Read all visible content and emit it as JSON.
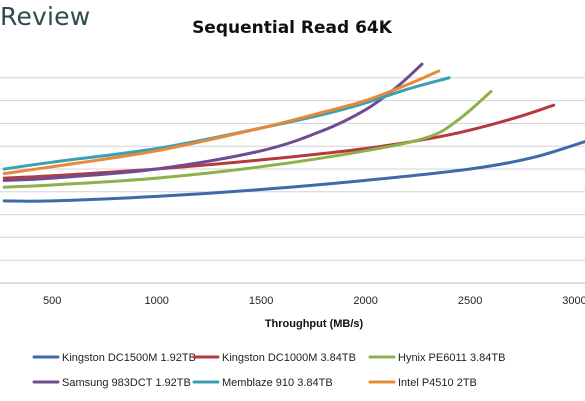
{
  "header": {
    "logo_text": "Review"
  },
  "chart_data": {
    "type": "line",
    "title": "Sequential Read 64K",
    "xlabel": "Throughput (MB/s)",
    "ylabel": "",
    "xlim": [
      250,
      3050
    ],
    "ylim": [
      0,
      10
    ],
    "x_ticks": [
      500,
      1000,
      1500,
      2000,
      2500,
      3000
    ],
    "x_tick_labels": [
      "500",
      "1000",
      "1500",
      "2000",
      "2500",
      "3000"
    ],
    "y_gridlines": [
      1,
      2,
      3,
      4,
      5,
      6,
      7,
      8,
      9
    ],
    "grid": true,
    "legend_position": "bottom",
    "series": [
      {
        "name": "Kingston DC1500M 1.92TB",
        "color": "#3f6aa7",
        "points": [
          [
            270,
            3.6
          ],
          [
            500,
            3.6
          ],
          [
            1000,
            3.8
          ],
          [
            1500,
            4.1
          ],
          [
            2000,
            4.5
          ],
          [
            2500,
            5.0
          ],
          [
            2800,
            5.5
          ],
          [
            3050,
            6.2
          ]
        ]
      },
      {
        "name": "Kingston DC1000M 3.84TB",
        "color": "#b5393d",
        "points": [
          [
            270,
            4.6
          ],
          [
            500,
            4.7
          ],
          [
            1000,
            5.0
          ],
          [
            1500,
            5.4
          ],
          [
            2000,
            5.9
          ],
          [
            2400,
            6.5
          ],
          [
            2700,
            7.2
          ],
          [
            2900,
            7.8
          ]
        ]
      },
      {
        "name": "Hynix PE6011 3.84TB",
        "color": "#8db14a",
        "points": [
          [
            270,
            4.2
          ],
          [
            500,
            4.3
          ],
          [
            1000,
            4.6
          ],
          [
            1500,
            5.1
          ],
          [
            2000,
            5.8
          ],
          [
            2300,
            6.4
          ],
          [
            2450,
            7.2
          ],
          [
            2600,
            8.4
          ]
        ]
      },
      {
        "name": "Samsung 983DCT 1.92TB",
        "color": "#6d4c93",
        "points": [
          [
            270,
            4.5
          ],
          [
            500,
            4.6
          ],
          [
            1000,
            5.0
          ],
          [
            1500,
            5.8
          ],
          [
            1800,
            6.7
          ],
          [
            2000,
            7.6
          ],
          [
            2150,
            8.6
          ],
          [
            2270,
            9.6
          ]
        ]
      },
      {
        "name": "Memblaze 910 3.84TB",
        "color": "#3aa0b3",
        "points": [
          [
            270,
            5.0
          ],
          [
            500,
            5.3
          ],
          [
            1000,
            5.9
          ],
          [
            1500,
            6.8
          ],
          [
            1800,
            7.4
          ],
          [
            2000,
            7.9
          ],
          [
            2200,
            8.5
          ],
          [
            2400,
            9.0
          ]
        ]
      },
      {
        "name": "Intel P4510 2TB",
        "color": "#e8893a",
        "points": [
          [
            270,
            4.8
          ],
          [
            500,
            5.1
          ],
          [
            1000,
            5.8
          ],
          [
            1500,
            6.8
          ],
          [
            1800,
            7.5
          ],
          [
            2000,
            8.0
          ],
          [
            2200,
            8.7
          ],
          [
            2350,
            9.3
          ]
        ]
      }
    ]
  }
}
